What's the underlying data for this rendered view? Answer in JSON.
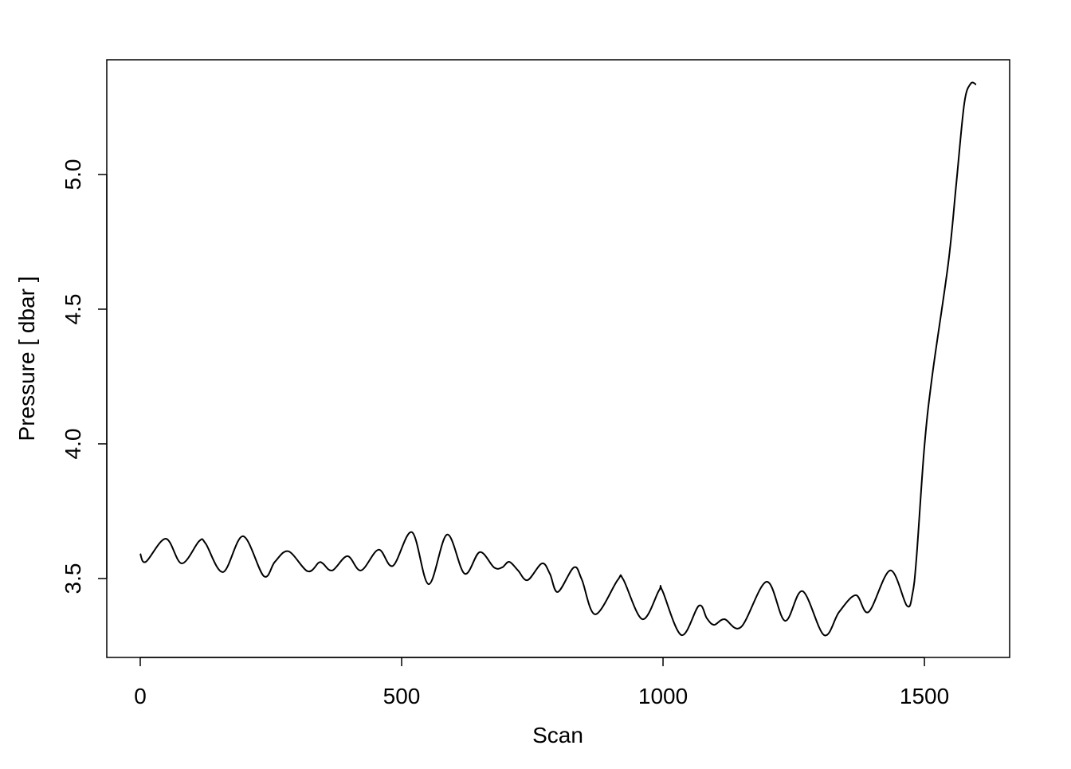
{
  "chart_data": {
    "type": "line",
    "title": "",
    "xlabel": "Scan",
    "ylabel": "Pressure [ dbar ]",
    "xlim": [
      -64,
      1663
    ],
    "ylim": [
      3.207,
      5.426
    ],
    "xticks": [
      0,
      500,
      1000,
      1500
    ],
    "xtick_labels": [
      "0",
      "500",
      "1000",
      "1500"
    ],
    "yticks": [
      3.5,
      4.0,
      4.5,
      5.0
    ],
    "ytick_labels": [
      "3.5",
      "4.0",
      "4.5",
      "5.0"
    ],
    "grid": false,
    "line_color": "#000000",
    "x": [
      0,
      10.7,
      48.8,
      79.3,
      112.8,
      125,
      158.5,
      196.6,
      236.3,
      257.6,
      283.5,
      320.1,
      341.5,
      349.1,
      367.4,
      396.3,
      422.3,
      455.8,
      483.2,
      519.8,
      551.8,
      586.9,
      620.4,
      649.4,
      676.8,
      692.1,
      705.8,
      722.6,
      740.9,
      768.3,
      783.5,
      798.8,
      829.3,
      844.5,
      870.4,
      913.1,
      923.8,
      960.4,
      992.4,
      998.5,
      1035.1,
      1068.6,
      1083.9,
      1097.6,
      1117.4,
      1149.4,
      1198.2,
      1233.3,
      1266.8,
      1308.0,
      1336.9,
      1368.9,
      1393.3,
      1434.5,
      1466.5,
      1477.2,
      1484.8,
      1500,
      1515.2,
      1545.7,
      1561,
      1576.2,
      1588.4,
      1599
    ],
    "y": [
      3.592,
      3.562,
      3.648,
      3.556,
      3.639,
      3.63,
      3.524,
      3.657,
      3.509,
      3.562,
      3.601,
      3.527,
      3.559,
      3.556,
      3.53,
      3.583,
      3.53,
      3.607,
      3.547,
      3.672,
      3.479,
      3.663,
      3.518,
      3.598,
      3.541,
      3.541,
      3.562,
      3.53,
      3.494,
      3.556,
      3.518,
      3.45,
      3.541,
      3.497,
      3.367,
      3.494,
      3.497,
      3.349,
      3.456,
      3.456,
      3.29,
      3.399,
      3.352,
      3.328,
      3.349,
      3.32,
      3.488,
      3.343,
      3.453,
      3.29,
      3.376,
      3.438,
      3.376,
      3.53,
      3.399,
      3.444,
      3.577,
      3.991,
      4.257,
      4.672,
      4.967,
      5.263,
      5.337,
      5.334
    ]
  }
}
